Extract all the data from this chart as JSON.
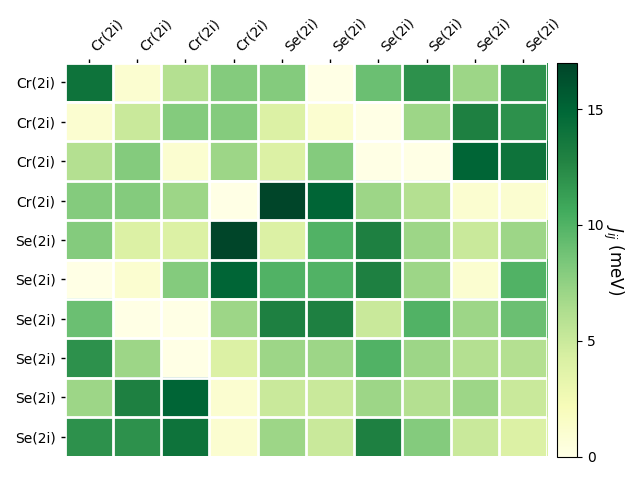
{
  "labels": [
    "Cr(2i)",
    "Cr(2i)",
    "Cr(2i)",
    "Cr(2i)",
    "Se(2i)",
    "Se(2i)",
    "Se(2i)",
    "Se(2i)",
    "Se(2i)",
    "Se(2i)"
  ],
  "matrix": [
    [
      14,
      1,
      6,
      8,
      8,
      0,
      9,
      12,
      7,
      12
    ],
    [
      1,
      5,
      8,
      8,
      4,
      1,
      0,
      7,
      13,
      12
    ],
    [
      6,
      8,
      1,
      7,
      4,
      8,
      0,
      0,
      15,
      14
    ],
    [
      8,
      8,
      7,
      0,
      17,
      15,
      7,
      6,
      1,
      1
    ],
    [
      8,
      4,
      4,
      17,
      4,
      10,
      13,
      7,
      5,
      7
    ],
    [
      0,
      1,
      8,
      15,
      10,
      10,
      13,
      7,
      1,
      10
    ],
    [
      9,
      0,
      0,
      7,
      13,
      13,
      5,
      10,
      7,
      9
    ],
    [
      12,
      7,
      0,
      4,
      7,
      7,
      10,
      7,
      6,
      6
    ],
    [
      7,
      13,
      15,
      1,
      5,
      5,
      7,
      6,
      7,
      5
    ],
    [
      12,
      12,
      14,
      1,
      7,
      5,
      13,
      8,
      5,
      4
    ]
  ],
  "vmin": 0,
  "vmax": 17,
  "cmap": "YlGn",
  "colorbar_label": "$J_{ij}$ (meV)",
  "colorbar_ticks": [
    0,
    5,
    10,
    15
  ],
  "figsize": [
    6.4,
    4.8
  ],
  "dpi": 100
}
